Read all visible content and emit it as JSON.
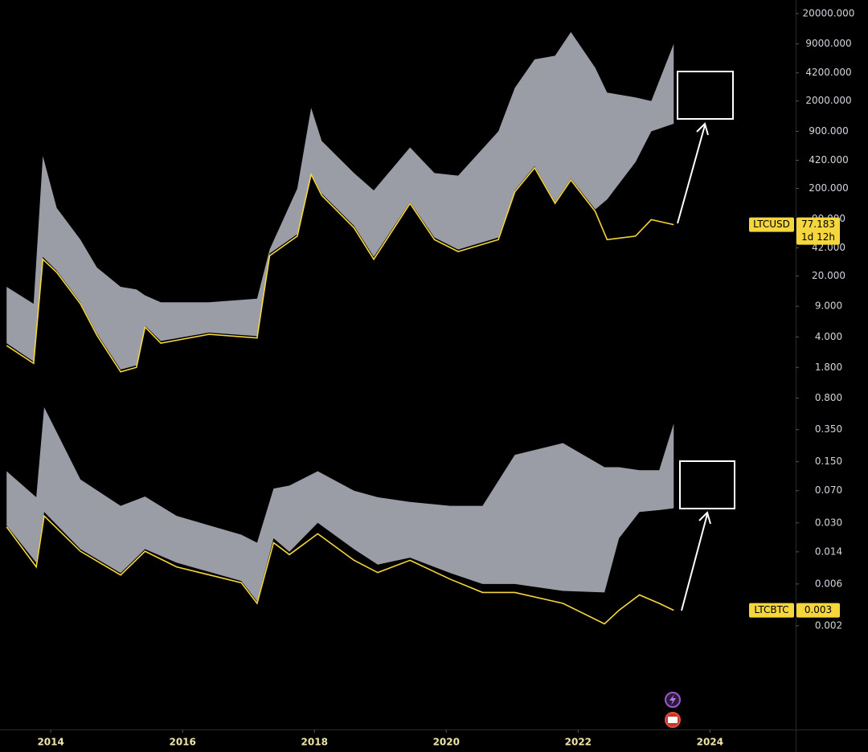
{
  "chart_data": {
    "type": "band-line",
    "log_scale": true,
    "xlim": [
      2013.23,
      2025.3
    ],
    "xticks": [
      2014,
      2016,
      2018,
      2020,
      2022,
      2024
    ],
    "ylim": [
      0.00013,
      28600
    ],
    "yticks": [
      {
        "value": 20000,
        "label": "20000.000"
      },
      {
        "value": 9000,
        "label": "9000.000"
      },
      {
        "value": 4200,
        "label": "4200.000"
      },
      {
        "value": 2000,
        "label": "2000.000"
      },
      {
        "value": 900,
        "label": "900.000"
      },
      {
        "value": 420,
        "label": "420.000"
      },
      {
        "value": 200,
        "label": "200.000"
      },
      {
        "value": 90,
        "label": "90.000"
      },
      {
        "value": 42,
        "label": "42.000"
      },
      {
        "value": 20,
        "label": "20.000"
      },
      {
        "value": 9,
        "label": "9.000"
      },
      {
        "value": 4,
        "label": "4.000"
      },
      {
        "value": 1.8,
        "label": "1.800"
      },
      {
        "value": 0.8,
        "label": "0.800"
      },
      {
        "value": 0.35,
        "label": "0.350"
      },
      {
        "value": 0.15,
        "label": "0.150"
      },
      {
        "value": 0.07,
        "label": "0.070"
      },
      {
        "value": 0.03,
        "label": "0.030"
      },
      {
        "value": 0.014,
        "label": "0.014"
      },
      {
        "value": 0.006,
        "label": "0.006"
      },
      {
        "value": 0.002,
        "label": "0.002"
      }
    ],
    "series": [
      {
        "name": "LTCUSD",
        "color": "#f5d63d",
        "band_color": "#9a9ca6",
        "last": 77.183,
        "countdown": "1d 12h",
        "x": [
          2013.33,
          2013.74,
          2013.88,
          2014.09,
          2014.45,
          2014.7,
          2015.06,
          2015.3,
          2015.43,
          2015.67,
          2016.4,
          2017.13,
          2017.32,
          2017.74,
          2017.95,
          2018.11,
          2018.6,
          2018.9,
          2019.45,
          2019.82,
          2020.18,
          2020.79,
          2021.04,
          2021.34,
          2021.65,
          2021.89,
          2022.26,
          2022.44,
          2022.87,
          2023.11,
          2023.45
        ],
        "values": [
          3.2,
          2.0,
          31,
          22,
          9.6,
          4.2,
          1.6,
          1.8,
          5.2,
          3.4,
          4.3,
          3.9,
          34,
          57,
          290,
          167,
          71,
          31,
          135,
          52,
          38,
          52,
          183,
          345,
          135,
          250,
          109,
          52,
          57,
          88,
          77.183
        ],
        "upper": [
          15,
          9.6,
          470,
          120,
          52,
          25,
          15,
          14,
          12,
          10,
          10,
          11,
          40,
          200,
          1670,
          700,
          300,
          190,
          590,
          300,
          280,
          900,
          2830,
          6000,
          6600,
          12300,
          4800,
          2500,
          2200,
          2000,
          9000
        ],
        "lower": [
          3.4,
          2.1,
          33,
          23,
          10,
          4.4,
          1.7,
          1.9,
          5.4,
          3.6,
          4.5,
          4.1,
          36,
          60,
          300,
          175,
          75,
          33,
          140,
          55,
          40,
          55,
          190,
          360,
          140,
          260,
          115,
          150,
          400,
          900,
          1100
        ]
      },
      {
        "name": "LTCBTC",
        "color": "#f5d63d",
        "band_color": "#9a9ca6",
        "last": 0.003,
        "x": [
          2013.33,
          2013.78,
          2013.9,
          2014.45,
          2015.06,
          2015.43,
          2015.91,
          2016.89,
          2017.13,
          2017.38,
          2017.62,
          2018.05,
          2018.6,
          2018.96,
          2019.45,
          2020.06,
          2020.55,
          2021.04,
          2021.77,
          2022.4,
          2022.62,
          2022.93,
          2023.23,
          2023.45
        ],
        "values": [
          0.027,
          0.0094,
          0.036,
          0.0142,
          0.0076,
          0.0142,
          0.0094,
          0.0062,
          0.0036,
          0.0178,
          0.013,
          0.0225,
          0.0112,
          0.0081,
          0.0112,
          0.0068,
          0.0048,
          0.0048,
          0.0036,
          0.0021,
          0.003,
          0.0045,
          0.0036,
          0.003
        ],
        "upper": [
          0.117,
          0.059,
          0.63,
          0.094,
          0.047,
          0.06,
          0.036,
          0.022,
          0.0178,
          0.074,
          0.08,
          0.117,
          0.07,
          0.059,
          0.052,
          0.047,
          0.047,
          0.18,
          0.245,
          0.13,
          0.13,
          0.12,
          0.12,
          0.41
        ],
        "lower": [
          0.028,
          0.0105,
          0.04,
          0.015,
          0.008,
          0.015,
          0.0105,
          0.0065,
          0.0038,
          0.02,
          0.014,
          0.03,
          0.015,
          0.01,
          0.012,
          0.008,
          0.006,
          0.006,
          0.005,
          0.0048,
          0.02,
          0.04,
          0.042,
          0.044
        ]
      }
    ]
  }
}
